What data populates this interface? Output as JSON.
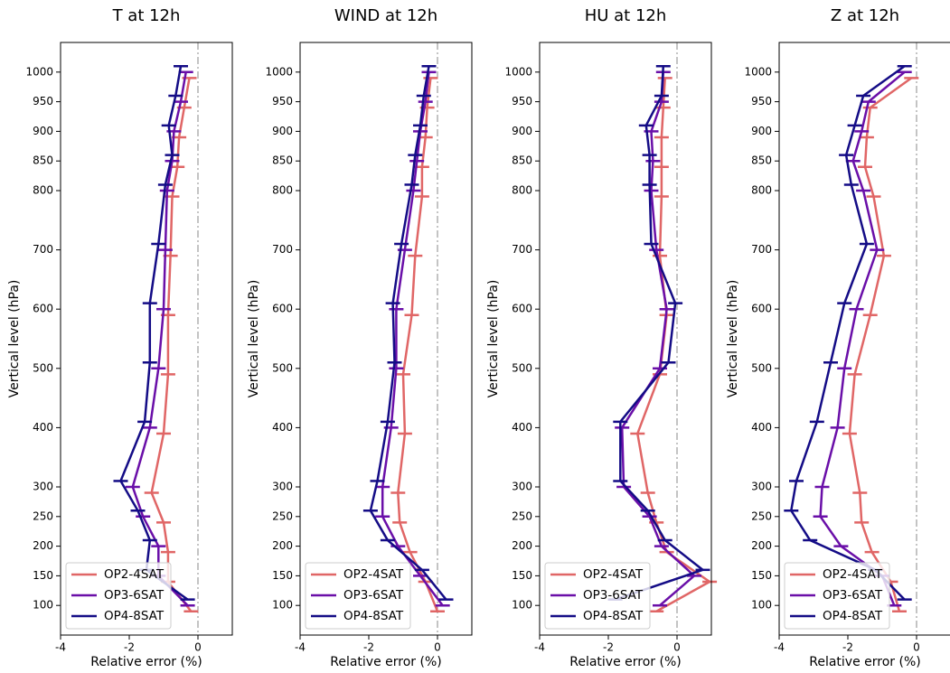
{
  "chart_data": [
    {
      "type": "line",
      "title": "T at 12h",
      "xlabel": "Relative error (%)",
      "ylabel": "Vertical level (hPa)",
      "xlim": [
        -4,
        1
      ],
      "ylim": [
        1050,
        50
      ],
      "xticks": [
        -4,
        -2,
        0
      ],
      "yticks": [
        100,
        150,
        200,
        250,
        300,
        400,
        500,
        600,
        700,
        800,
        850,
        900,
        950,
        1000
      ],
      "vline": 0,
      "marker": "_",
      "legend": "lower left",
      "series": [
        {
          "name": "OP2-4SAT",
          "color": "#e06666",
          "levels": [
            90,
            140,
            190,
            240,
            290,
            390,
            490,
            590,
            690,
            790,
            840,
            890,
            940,
            990
          ],
          "values": [
            -0.2,
            -0.87,
            -0.87,
            -1.0,
            -1.35,
            -1.0,
            -0.87,
            -0.87,
            -0.8,
            -0.75,
            -0.6,
            -0.55,
            -0.4,
            -0.25
          ]
        },
        {
          "name": "OP3-6SAT",
          "color": "#6a0fa8",
          "levels": [
            100,
            150,
            200,
            250,
            300,
            400,
            500,
            600,
            700,
            800,
            850,
            900,
            950,
            1000
          ],
          "values": [
            -0.3,
            -1.15,
            -1.15,
            -1.6,
            -1.9,
            -1.4,
            -1.15,
            -1.0,
            -0.95,
            -0.9,
            -0.75,
            -0.7,
            -0.5,
            -0.35
          ]
        },
        {
          "name": "OP4-8SAT",
          "color": "#140c86",
          "levels": [
            110,
            160,
            210,
            260,
            310,
            410,
            510,
            610,
            710,
            810,
            860,
            910,
            960,
            1010
          ],
          "values": [
            -0.3,
            -1.5,
            -1.4,
            -1.75,
            -2.25,
            -1.55,
            -1.4,
            -1.4,
            -1.15,
            -0.95,
            -0.75,
            -0.85,
            -0.65,
            -0.5
          ]
        }
      ]
    },
    {
      "type": "line",
      "title": "WIND at 12h",
      "xlabel": "Relative error (%)",
      "ylabel": "Vertical level (hPa)",
      "xlim": [
        -4,
        1
      ],
      "ylim": [
        1050,
        50
      ],
      "xticks": [
        -4,
        -2,
        0
      ],
      "yticks": [
        100,
        150,
        200,
        250,
        300,
        400,
        500,
        600,
        700,
        800,
        850,
        900,
        950,
        1000
      ],
      "vline": 0,
      "marker": "_",
      "legend": "lower left",
      "series": [
        {
          "name": "OP2-4SAT",
          "color": "#e06666",
          "levels": [
            90,
            140,
            190,
            240,
            290,
            390,
            490,
            590,
            690,
            790,
            840,
            890,
            940,
            990
          ],
          "values": [
            0,
            -0.35,
            -0.8,
            -1.1,
            -1.15,
            -0.95,
            -1.0,
            -0.75,
            -0.65,
            -0.45,
            -0.45,
            -0.35,
            -0.3,
            -0.2
          ]
        },
        {
          "name": "OP3-6SAT",
          "color": "#6a0fa8",
          "levels": [
            100,
            150,
            200,
            250,
            300,
            400,
            500,
            600,
            700,
            800,
            850,
            900,
            950,
            1000
          ],
          "values": [
            0.15,
            -0.5,
            -1.15,
            -1.6,
            -1.6,
            -1.35,
            -1.2,
            -1.2,
            -0.95,
            -0.7,
            -0.6,
            -0.5,
            -0.35,
            -0.25
          ]
        },
        {
          "name": "OP4-8SAT",
          "color": "#140c86",
          "levels": [
            110,
            160,
            210,
            260,
            310,
            410,
            510,
            610,
            710,
            810,
            860,
            910,
            960,
            1010
          ],
          "values": [
            0.25,
            -0.45,
            -1.45,
            -1.95,
            -1.75,
            -1.45,
            -1.25,
            -1.3,
            -1.05,
            -0.75,
            -0.65,
            -0.5,
            -0.4,
            -0.25
          ]
        }
      ]
    },
    {
      "type": "line",
      "title": "HU at 12h",
      "xlabel": "Relative error (%)",
      "ylabel": "Vertical level (hPa)",
      "xlim": [
        -4,
        1
      ],
      "ylim": [
        1050,
        50
      ],
      "xticks": [
        -4,
        -2,
        0
      ],
      "yticks": [
        100,
        150,
        200,
        250,
        300,
        400,
        500,
        600,
        700,
        800,
        850,
        900,
        950,
        1000
      ],
      "vline": 0,
      "marker": "_",
      "legend": "lower left",
      "series": [
        {
          "name": "OP2-4SAT",
          "color": "#e06666",
          "levels": [
            90,
            140,
            190,
            240,
            290,
            390,
            490,
            590,
            690,
            790,
            840,
            890,
            940,
            990
          ],
          "values": [
            -0.6,
            0.95,
            -0.3,
            -0.6,
            -0.85,
            -1.15,
            -0.5,
            -0.3,
            -0.5,
            -0.45,
            -0.45,
            -0.45,
            -0.4,
            -0.35
          ]
        },
        {
          "name": "OP3-6SAT",
          "color": "#6a0fa8",
          "levels": [
            100,
            150,
            200,
            250,
            300,
            400,
            500,
            600,
            700,
            800,
            850,
            900,
            950,
            1000
          ],
          "values": [
            -0.5,
            0.5,
            -0.45,
            -0.8,
            -1.55,
            -1.6,
            -0.5,
            -0.3,
            -0.6,
            -0.75,
            -0.7,
            -0.75,
            -0.45,
            -0.4
          ]
        },
        {
          "name": "OP4-8SAT",
          "color": "#140c86",
          "levels": [
            110,
            160,
            210,
            260,
            310,
            410,
            510,
            610,
            710,
            810,
            860,
            910,
            960,
            1010
          ],
          "values": [
            -1.8,
            0.75,
            -0.35,
            -0.85,
            -1.65,
            -1.65,
            -0.25,
            -0.05,
            -0.75,
            -0.8,
            -0.8,
            -0.9,
            -0.45,
            -0.4
          ]
        }
      ]
    },
    {
      "type": "line",
      "title": "Z at 12h",
      "xlabel": "Relative error (%)",
      "ylabel": "Vertical level (hPa)",
      "xlim": [
        -4,
        1
      ],
      "ylim": [
        1050,
        50
      ],
      "xticks": [
        -4,
        -2,
        0
      ],
      "yticks": [
        100,
        150,
        200,
        250,
        300,
        400,
        500,
        600,
        700,
        800,
        850,
        900,
        950,
        1000
      ],
      "vline": 0,
      "marker": "_",
      "legend": "lower left",
      "series": [
        {
          "name": "OP2-4SAT",
          "color": "#e06666",
          "levels": [
            90,
            140,
            190,
            240,
            290,
            390,
            490,
            590,
            690,
            790,
            840,
            890,
            940,
            990
          ],
          "values": [
            -0.5,
            -0.75,
            -1.3,
            -1.6,
            -1.65,
            -1.95,
            -1.8,
            -1.35,
            -0.95,
            -1.25,
            -1.5,
            -1.45,
            -1.35,
            -0.15
          ]
        },
        {
          "name": "OP3-6SAT",
          "color": "#6a0fa8",
          "levels": [
            100,
            150,
            200,
            250,
            300,
            400,
            500,
            600,
            700,
            800,
            850,
            900,
            950,
            1000
          ],
          "values": [
            -0.65,
            -1.0,
            -2.2,
            -2.8,
            -2.75,
            -2.3,
            -2.1,
            -1.75,
            -1.15,
            -1.55,
            -1.85,
            -1.6,
            -1.4,
            -0.35
          ]
        },
        {
          "name": "OP4-8SAT",
          "color": "#140c86",
          "levels": [
            110,
            160,
            210,
            260,
            310,
            410,
            510,
            610,
            710,
            810,
            860,
            910,
            960,
            1010
          ],
          "values": [
            -0.35,
            -1.2,
            -3.1,
            -3.65,
            -3.5,
            -2.9,
            -2.5,
            -2.1,
            -1.45,
            -1.9,
            -2.05,
            -1.8,
            -1.55,
            -0.35
          ]
        }
      ]
    }
  ]
}
